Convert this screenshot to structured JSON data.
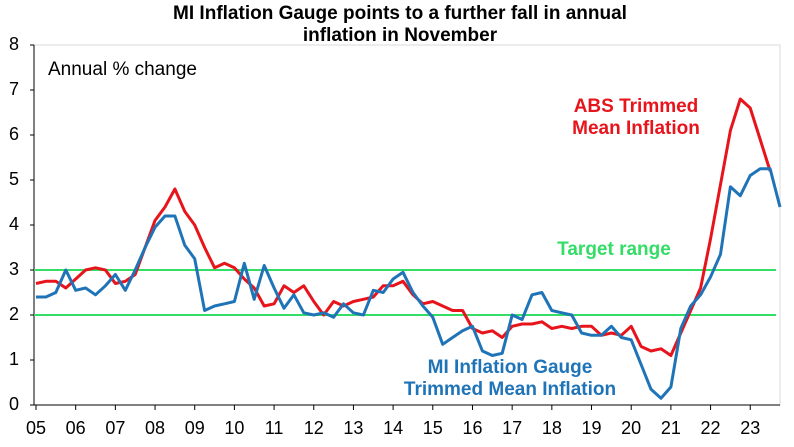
{
  "chart_data": {
    "type": "line",
    "title": [
      "MI Inflation Gauge points to a further fall in annual",
      "inflation in November"
    ],
    "y_label": "Annual % change",
    "x": [
      2005,
      2005.25,
      2005.5,
      2005.75,
      2006,
      2006.25,
      2006.5,
      2006.75,
      2007,
      2007.25,
      2007.5,
      2007.75,
      2008,
      2008.25,
      2008.5,
      2008.75,
      2009,
      2009.25,
      2009.5,
      2009.75,
      2010,
      2010.25,
      2010.5,
      2010.75,
      2011,
      2011.25,
      2011.5,
      2011.75,
      2012,
      2012.25,
      2012.5,
      2012.75,
      2013,
      2013.25,
      2013.5,
      2013.75,
      2014,
      2014.25,
      2014.5,
      2014.75,
      2015,
      2015.25,
      2015.5,
      2015.75,
      2016,
      2016.25,
      2016.5,
      2016.75,
      2017,
      2017.25,
      2017.5,
      2017.75,
      2018,
      2018.25,
      2018.5,
      2018.75,
      2019,
      2019.25,
      2019.5,
      2019.75,
      2020,
      2020.25,
      2020.5,
      2020.75,
      2021,
      2021.25,
      2021.5,
      2021.75,
      2022,
      2022.25,
      2022.5,
      2022.75,
      2023,
      2023.25,
      2023.5,
      2023.75
    ],
    "series": [
      {
        "name": [
          "ABS Trimmed",
          "Mean Inflation"
        ],
        "color": "#e8141c",
        "values": [
          2.7,
          2.75,
          2.75,
          2.6,
          2.8,
          3.0,
          3.05,
          3.0,
          2.7,
          2.75,
          2.9,
          3.5,
          4.1,
          4.4,
          4.8,
          4.3,
          4.0,
          3.5,
          3.05,
          3.15,
          3.05,
          2.8,
          2.6,
          2.2,
          2.25,
          2.65,
          2.5,
          2.65,
          2.3,
          2.0,
          2.3,
          2.2,
          2.3,
          2.35,
          2.4,
          2.65,
          2.65,
          2.75,
          2.45,
          2.25,
          2.3,
          2.2,
          2.1,
          2.1,
          1.7,
          1.6,
          1.65,
          1.5,
          1.75,
          1.8,
          1.8,
          1.85,
          1.7,
          1.75,
          1.7,
          1.75,
          1.75,
          1.55,
          1.6,
          1.55,
          1.75,
          1.3,
          1.2,
          1.25,
          1.1,
          1.6,
          2.1,
          2.6,
          3.7,
          4.9,
          6.1,
          6.8,
          6.6,
          5.9,
          5.2,
          null
        ]
      },
      {
        "name": [
          "MI Inflation Gauge",
          "Trimmed Mean Inflation"
        ],
        "color": "#1f74b8",
        "values": [
          2.4,
          2.4,
          2.5,
          3.0,
          2.55,
          2.6,
          2.45,
          2.65,
          2.9,
          2.55,
          3.0,
          3.5,
          3.95,
          4.2,
          4.2,
          3.55,
          3.25,
          2.1,
          2.2,
          2.25,
          2.3,
          3.15,
          2.35,
          3.1,
          2.6,
          2.15,
          2.45,
          2.05,
          2.0,
          2.05,
          1.95,
          2.25,
          2.05,
          2.0,
          2.55,
          2.5,
          2.8,
          2.95,
          2.5,
          2.2,
          1.95,
          1.35,
          1.5,
          1.65,
          1.75,
          1.2,
          1.1,
          1.15,
          2.0,
          1.9,
          2.45,
          2.5,
          2.1,
          2.05,
          2.0,
          1.6,
          1.55,
          1.55,
          1.75,
          1.5,
          1.45,
          0.9,
          0.35,
          0.15,
          0.4,
          1.7,
          2.2,
          2.45,
          2.85,
          3.35,
          4.85,
          4.65,
          5.1,
          5.25,
          5.25,
          4.4
        ]
      }
    ],
    "reference_lines": {
      "label": "Target range",
      "color": "#33dd66",
      "values": [
        3,
        2
      ]
    },
    "xlim": [
      2005,
      2023.75
    ],
    "xticks": [
      {
        "value": 2005,
        "label": "05"
      },
      {
        "value": 2006,
        "label": "06"
      },
      {
        "value": 2007,
        "label": "07"
      },
      {
        "value": 2008,
        "label": "08"
      },
      {
        "value": 2009,
        "label": "09"
      },
      {
        "value": 2010,
        "label": "10"
      },
      {
        "value": 2011,
        "label": "11"
      },
      {
        "value": 2012,
        "label": "12"
      },
      {
        "value": 2013,
        "label": "13"
      },
      {
        "value": 2014,
        "label": "14"
      },
      {
        "value": 2015,
        "label": "15"
      },
      {
        "value": 2016,
        "label": "16"
      },
      {
        "value": 2017,
        "label": "17"
      },
      {
        "value": 2018,
        "label": "18"
      },
      {
        "value": 2019,
        "label": "19"
      },
      {
        "value": 2020,
        "label": "20"
      },
      {
        "value": 2021,
        "label": "21"
      },
      {
        "value": 2022,
        "label": "22"
      },
      {
        "value": 2023,
        "label": "23"
      }
    ],
    "ylim": [
      0,
      8
    ],
    "yticks": [
      0,
      1,
      2,
      3,
      4,
      5,
      6,
      7,
      8
    ]
  }
}
